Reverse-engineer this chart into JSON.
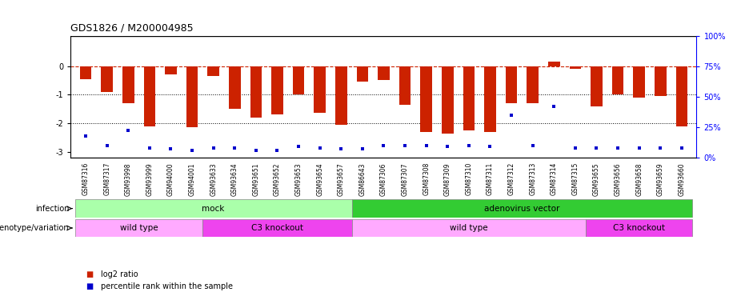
{
  "title": "GDS1826 / M200004985",
  "samples": [
    "GSM87316",
    "GSM87317",
    "GSM93998",
    "GSM93999",
    "GSM94000",
    "GSM94001",
    "GSM93633",
    "GSM93634",
    "GSM93651",
    "GSM93652",
    "GSM93653",
    "GSM93654",
    "GSM93657",
    "GSM86643",
    "GSM87306",
    "GSM87307",
    "GSM87308",
    "GSM87309",
    "GSM87310",
    "GSM87311",
    "GSM87312",
    "GSM87313",
    "GSM87314",
    "GSM87315",
    "GSM93655",
    "GSM93656",
    "GSM93658",
    "GSM93659",
    "GSM93660"
  ],
  "log2_ratio": [
    -0.45,
    -0.9,
    -1.3,
    -2.1,
    -0.3,
    -2.15,
    -0.35,
    -1.5,
    -1.8,
    -1.7,
    -1.0,
    -1.65,
    -2.05,
    -0.55,
    -0.5,
    -1.35,
    -2.3,
    -2.35,
    -2.25,
    -2.3,
    -1.3,
    -1.3,
    0.15,
    -0.1,
    -1.4,
    -1.0,
    -1.1,
    -1.05,
    -2.1
  ],
  "percentile_rank": [
    18,
    10,
    22,
    8,
    7,
    6,
    8,
    8,
    6,
    6,
    9,
    8,
    7,
    7,
    10,
    10,
    10,
    9,
    10,
    9,
    35,
    10,
    42,
    8,
    8,
    8,
    8,
    8,
    8
  ],
  "infection_groups": [
    {
      "label": "mock",
      "start": 0,
      "end": 13,
      "color": "#aaffaa"
    },
    {
      "label": "adenovirus vector",
      "start": 13,
      "end": 29,
      "color": "#33cc33"
    }
  ],
  "genotype_groups": [
    {
      "label": "wild type",
      "start": 0,
      "end": 6,
      "color": "#ffaaff"
    },
    {
      "label": "C3 knockout",
      "start": 6,
      "end": 13,
      "color": "#ee44ee"
    },
    {
      "label": "wild type",
      "start": 13,
      "end": 24,
      "color": "#ffaaff"
    },
    {
      "label": "C3 knockout",
      "start": 24,
      "end": 29,
      "color": "#ee44ee"
    }
  ],
  "bar_color": "#cc2200",
  "dot_color": "#0000cc",
  "ylim_left": [
    -3.2,
    1.05
  ],
  "ylim_right": [
    0,
    100
  ],
  "yticks_left": [
    -3,
    -2,
    -1,
    0
  ],
  "yticks_right": [
    0,
    25,
    50,
    75,
    100
  ],
  "ytick_labels_right": [
    "0%",
    "25%",
    "50%",
    "75%",
    "100%"
  ],
  "dotted_lines": [
    -1,
    -2
  ],
  "bar_width": 0.55
}
